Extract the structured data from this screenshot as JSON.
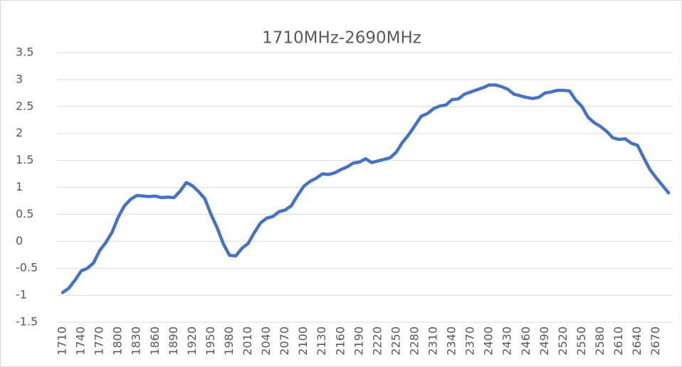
{
  "chart_data": {
    "type": "line",
    "title": "1710MHz-2690MHz",
    "categories": [
      "1710",
      null,
      null,
      "1740",
      null,
      null,
      "1770",
      null,
      null,
      "1800",
      null,
      null,
      "1830",
      null,
      null,
      "1860",
      null,
      null,
      "1890",
      null,
      null,
      "1920",
      null,
      null,
      "1950",
      null,
      null,
      "1980",
      null,
      null,
      "2010",
      null,
      null,
      "2040",
      null,
      null,
      "2070",
      null,
      null,
      "2100",
      null,
      null,
      "2130",
      null,
      null,
      "2160",
      null,
      null,
      "2190",
      null,
      null,
      "2220",
      null,
      null,
      "2250",
      null,
      null,
      "2280",
      null,
      null,
      "2310",
      null,
      null,
      "2340",
      null,
      null,
      "2370",
      null,
      null,
      "2400",
      null,
      null,
      "2430",
      null,
      null,
      "2460",
      null,
      null,
      "2490",
      null,
      null,
      "2520",
      null,
      null,
      "2550",
      null,
      null,
      "2580",
      null,
      null,
      "2610",
      null,
      null,
      "2640",
      null,
      null,
      "2670",
      null,
      null
    ],
    "values": [
      -0.95,
      -0.87,
      -0.72,
      -0.55,
      -0.5,
      -0.4,
      -0.17,
      -0.02,
      0.17,
      0.45,
      0.66,
      0.78,
      0.85,
      0.84,
      0.83,
      0.84,
      0.81,
      0.82,
      0.81,
      0.93,
      1.09,
      1.03,
      0.92,
      0.79,
      0.5,
      0.25,
      -0.05,
      -0.26,
      -0.27,
      -0.13,
      -0.04,
      0.16,
      0.34,
      0.43,
      0.46,
      0.55,
      0.58,
      0.66,
      0.85,
      1.02,
      1.11,
      1.17,
      1.25,
      1.24,
      1.27,
      1.33,
      1.38,
      1.45,
      1.47,
      1.53,
      1.46,
      1.49,
      1.52,
      1.55,
      1.66,
      1.84,
      1.98,
      2.15,
      2.32,
      2.37,
      2.46,
      2.51,
      2.53,
      2.63,
      2.64,
      2.73,
      2.77,
      2.81,
      2.85,
      2.9,
      2.9,
      2.87,
      2.82,
      2.73,
      2.7,
      2.67,
      2.65,
      2.67,
      2.75,
      2.77,
      2.8,
      2.8,
      2.79,
      2.62,
      2.5,
      2.3,
      2.2,
      2.13,
      2.04,
      1.92,
      1.89,
      1.9,
      1.82,
      1.78,
      1.55,
      1.33,
      1.18,
      1.04,
      0.9
    ],
    "color": "#4472c4",
    "ylim": [
      -1.5,
      3.5
    ],
    "yticks": [
      -1.5,
      -1,
      -0.5,
      0,
      0.5,
      1,
      1.5,
      2,
      2.5,
      3,
      3.5
    ],
    "grid": true
  }
}
